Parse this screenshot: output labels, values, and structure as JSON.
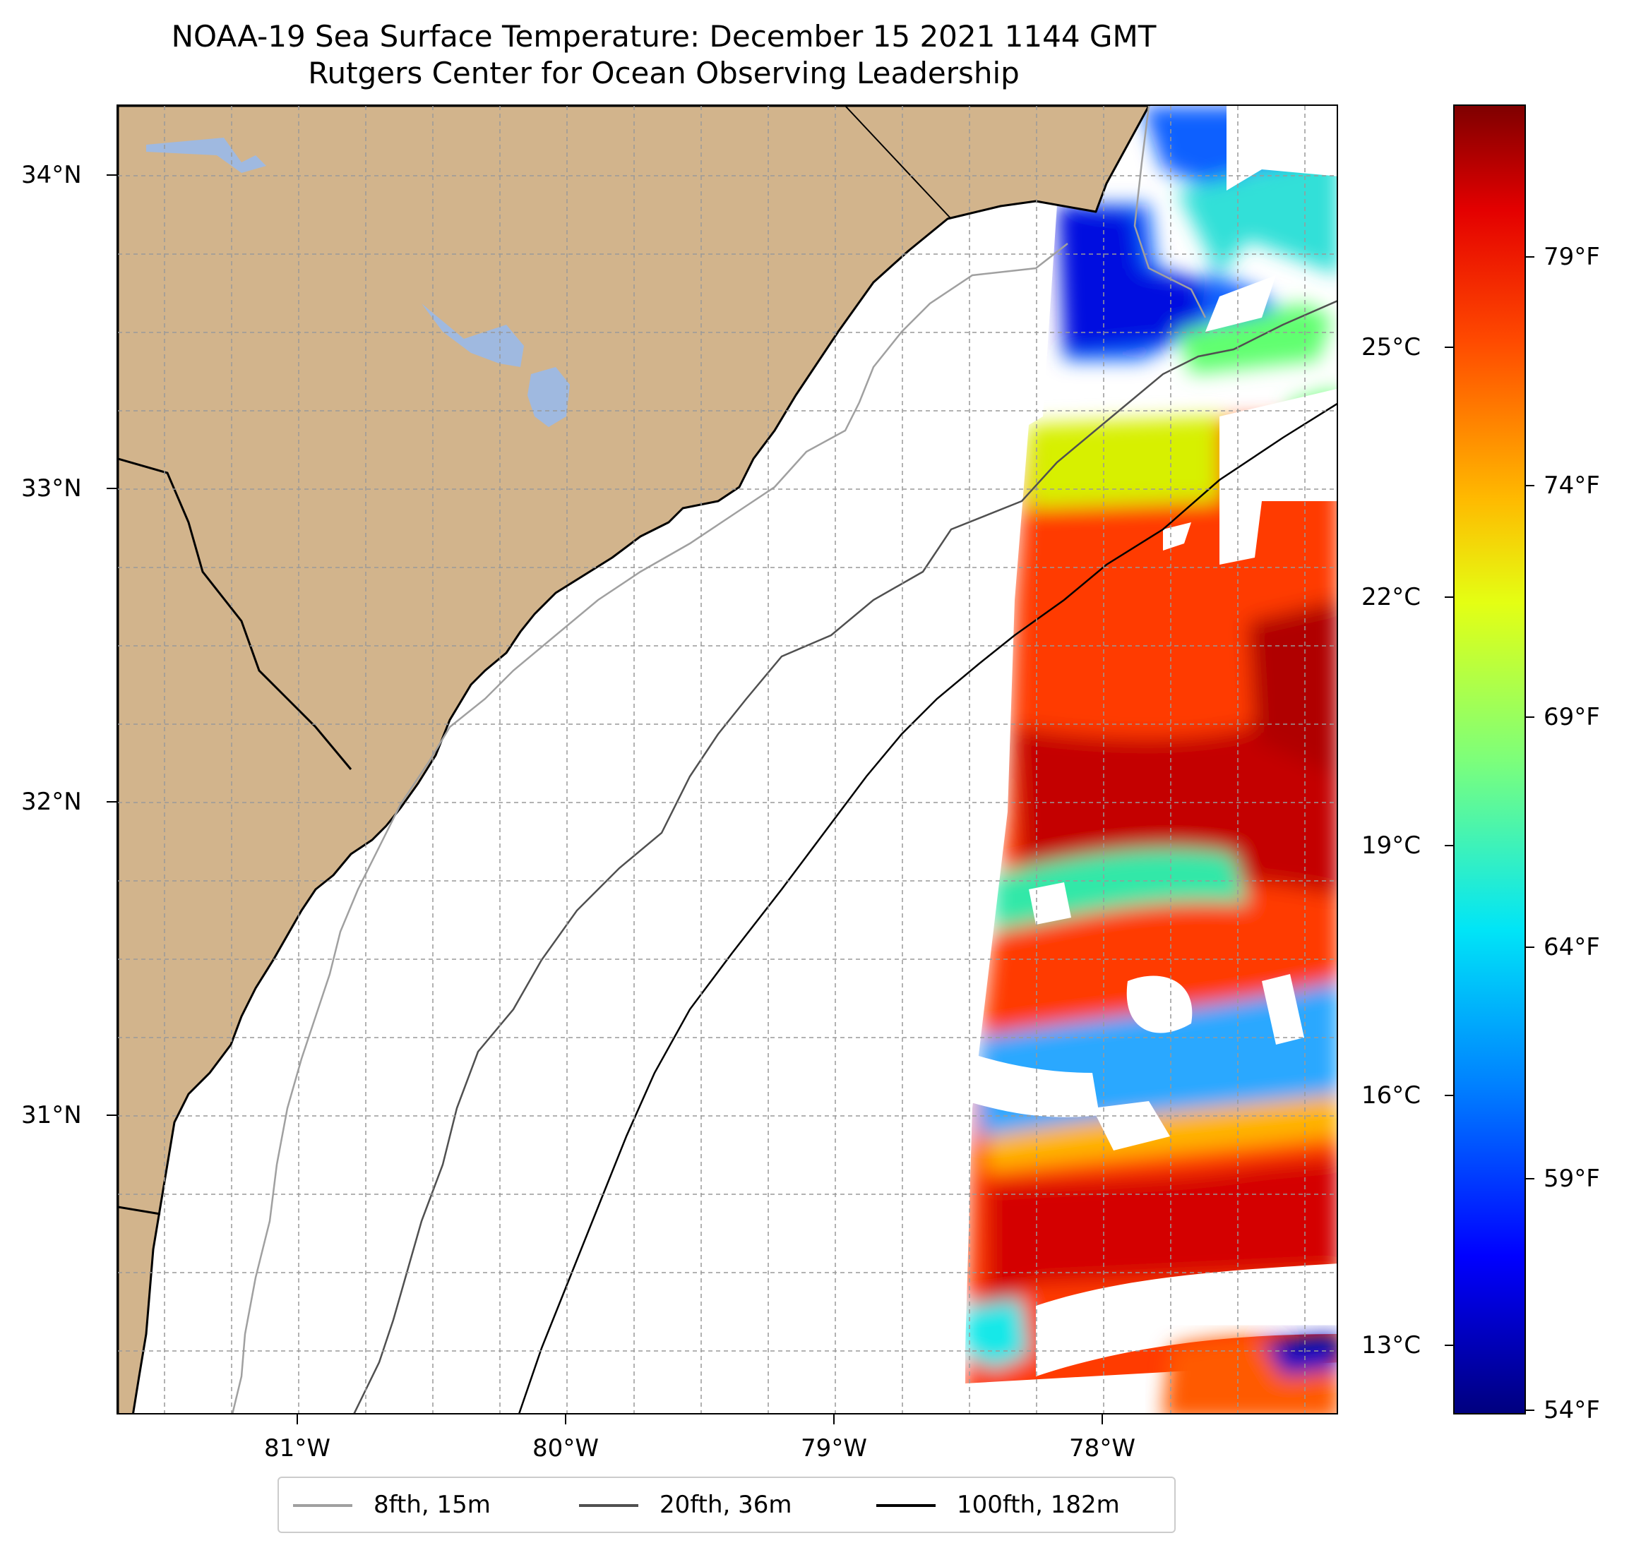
{
  "title": {
    "line1": "NOAA-19 Sea Surface Temperature: December 15 2021 1144 GMT",
    "line2": "Rutgers Center for Ocean Observing Leadership"
  },
  "axes": {
    "y_ticks": [
      "34°N",
      "33°N",
      "32°N",
      "31°N"
    ],
    "x_ticks": [
      "81°W",
      "80°W",
      "79°W",
      "78°W"
    ]
  },
  "colorbar": {
    "celsius": [
      "25°C",
      "22°C",
      "19°C",
      "16°C",
      "13°C"
    ],
    "fahrenheit": [
      "79°F",
      "74°F",
      "69°F",
      "64°F",
      "59°F",
      "54°F"
    ]
  },
  "legend": {
    "items": [
      {
        "label": "8fth, 15m",
        "color": "#a0a0a0"
      },
      {
        "label": "20fth, 36m",
        "color": "#505050"
      },
      {
        "label": "100fth, 182m",
        "color": "#000000"
      }
    ]
  },
  "colors": {
    "land": "#d2b48c",
    "lake": "#9fb9e0"
  }
}
